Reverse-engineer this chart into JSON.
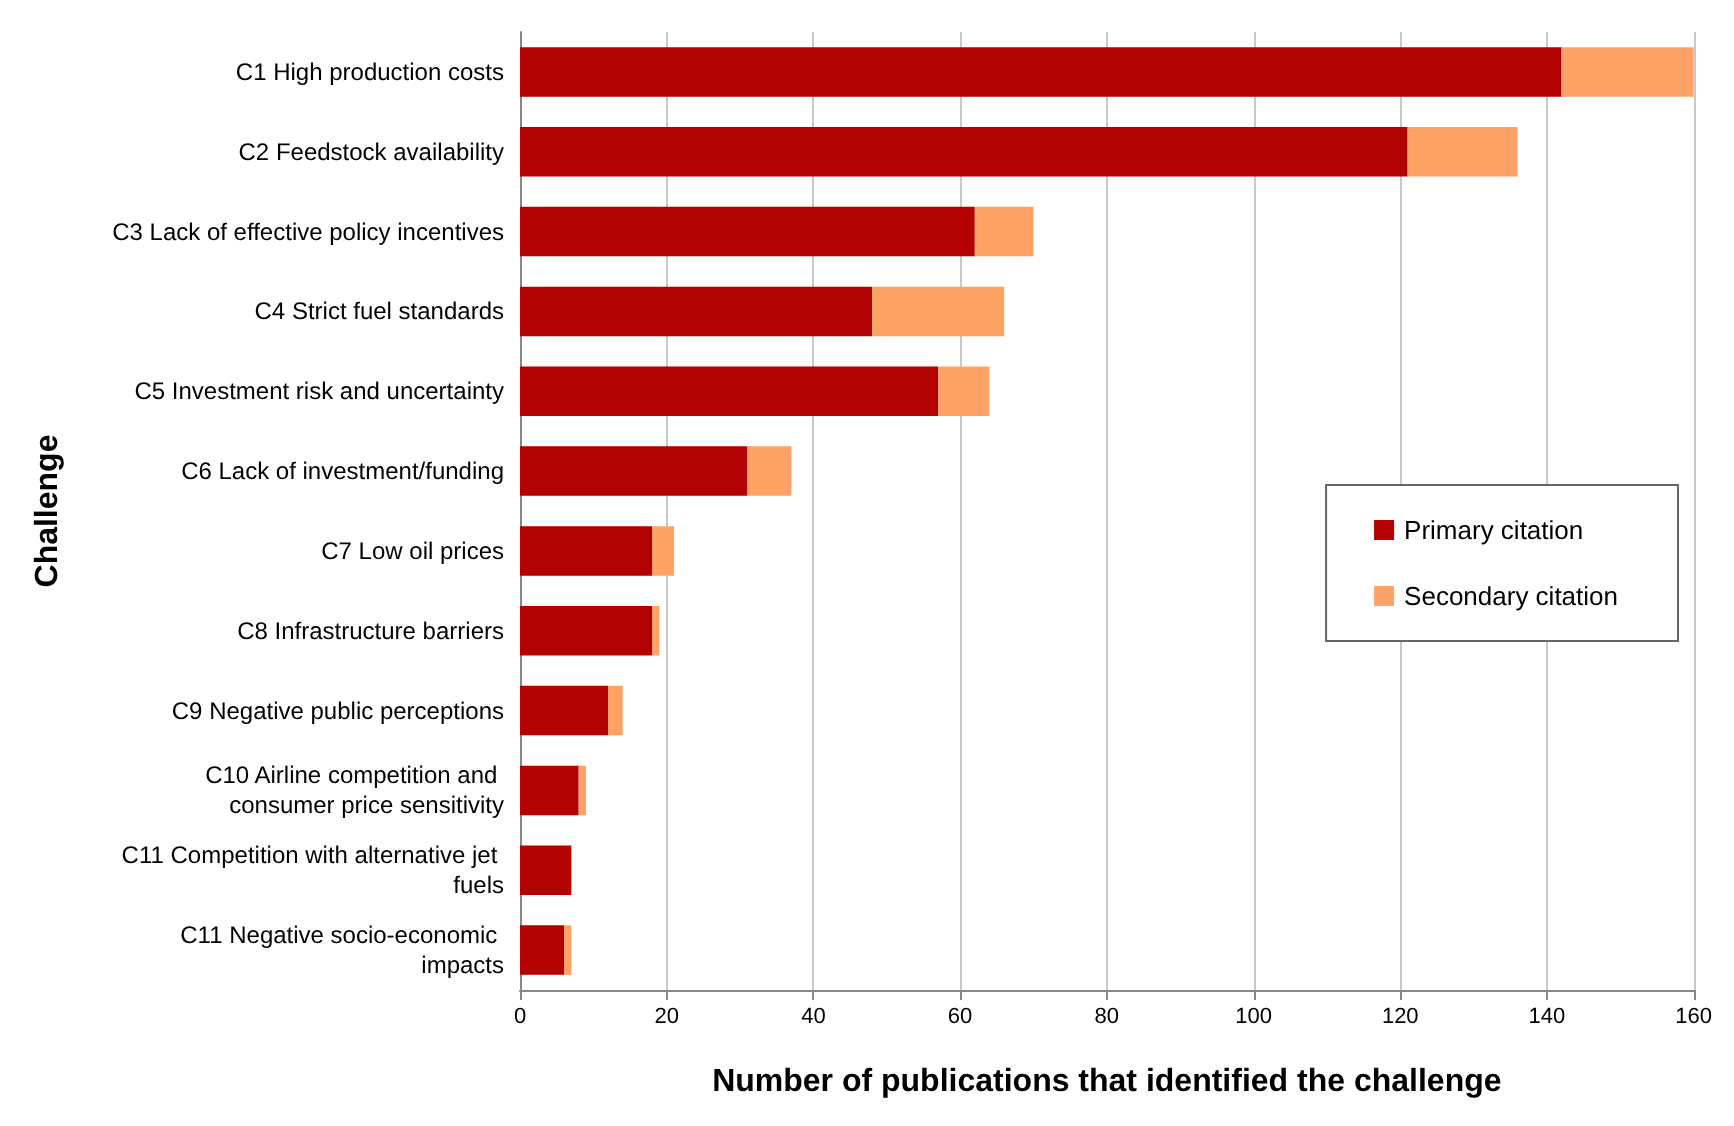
{
  "chart_data": {
    "type": "bar",
    "orientation": "horizontal",
    "stacked": true,
    "categories": [
      "C1 High production costs",
      "C2 Feedstock availability",
      "C3 Lack of effective policy incentives",
      "C4 Strict fuel standards",
      "C5 Investment risk and uncertainty",
      "C6 Lack of investment/funding",
      "C7 Low oil prices",
      "C8 Infrastructure barriers",
      "C9 Negative public perceptions",
      "C10 Airline competition and consumer price sensitivity",
      "C11 Competition with alternative jet fuels",
      "C11 Negative socio-economic impacts"
    ],
    "series": [
      {
        "name": "Primary citation",
        "color": "#b30000",
        "values": [
          142,
          121,
          62,
          48,
          57,
          31,
          18,
          18,
          12,
          8,
          7,
          6
        ]
      },
      {
        "name": "Secondary citation",
        "color": "#ffa265",
        "values": [
          18,
          15,
          8,
          18,
          7,
          6,
          3,
          1,
          2,
          1,
          0,
          1
        ]
      }
    ],
    "xlabel": "Number of publications that identified the challenge",
    "ylabel": "Challenge",
    "xlim": [
      0,
      160
    ],
    "xticks": [
      0,
      20,
      40,
      60,
      80,
      100,
      120,
      140,
      160
    ],
    "grid": "x",
    "legend": "right"
  }
}
